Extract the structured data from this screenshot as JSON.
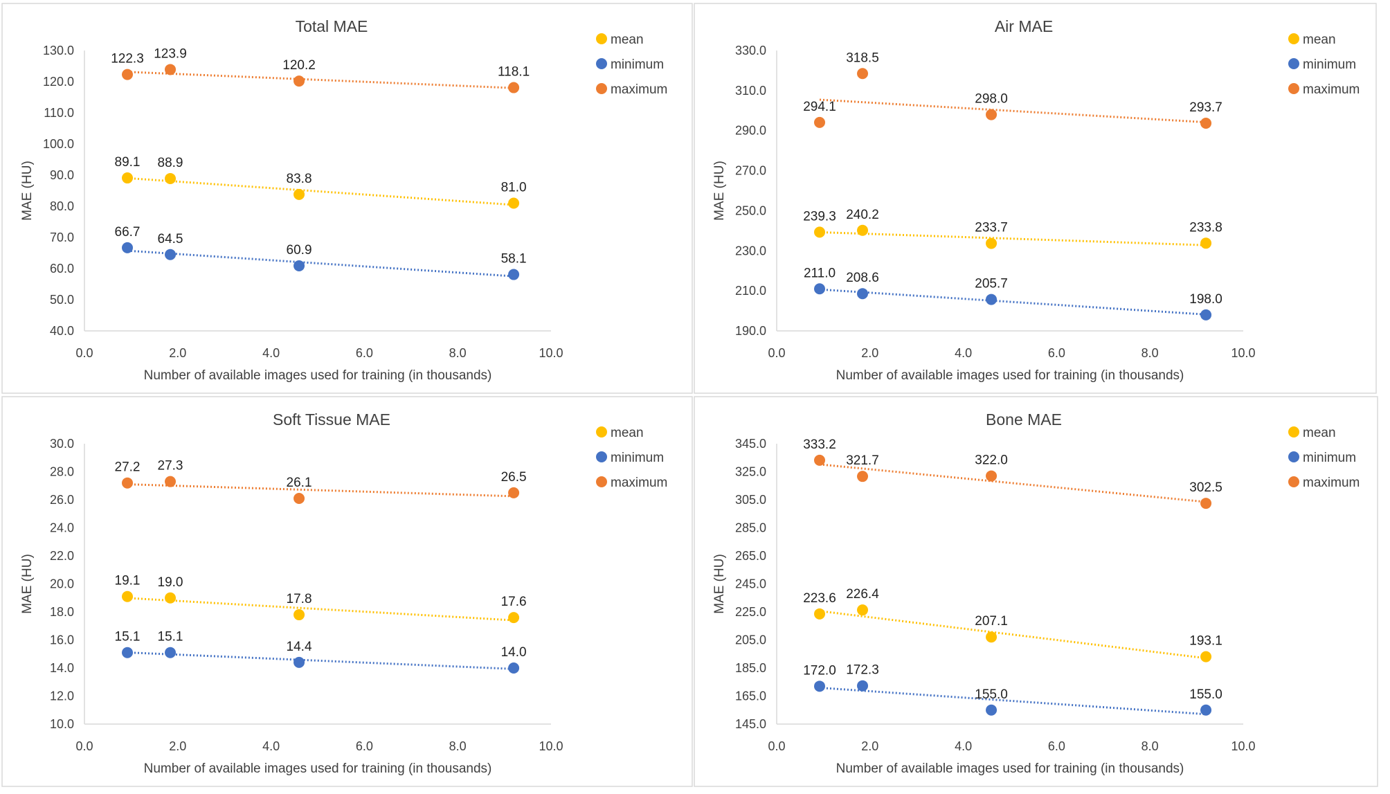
{
  "colors": {
    "mean": "#FFC000",
    "minimum": "#4472C4",
    "maximum": "#ED7D31"
  },
  "chart_data": [
    {
      "type": "scatter",
      "title": "Total MAE",
      "xlabel": "Number of available images used for training (in thousands)",
      "ylabel": "MAE (HU)",
      "xlim": [
        0,
        10
      ],
      "xstep": 2,
      "ylim": [
        40,
        130
      ],
      "ystep": 10,
      "x": [
        0.92,
        1.84,
        4.6,
        9.2
      ],
      "legend_position": "top-right",
      "trendline": "linear",
      "series": [
        {
          "name": "mean",
          "key": "mean",
          "values": [
            89.1,
            88.9,
            83.8,
            81.0
          ]
        },
        {
          "name": "minimum",
          "key": "minimum",
          "values": [
            66.7,
            64.5,
            60.9,
            58.1
          ]
        },
        {
          "name": "maximum",
          "key": "maximum",
          "values": [
            122.3,
            123.9,
            120.2,
            118.1
          ]
        }
      ]
    },
    {
      "type": "scatter",
      "title": "Air MAE",
      "xlabel": "Number of available images used for training (in thousands)",
      "ylabel": "MAE (HU)",
      "xlim": [
        0,
        10
      ],
      "xstep": 2,
      "ylim": [
        190,
        330
      ],
      "ystep": 20,
      "x": [
        0.92,
        1.84,
        4.6,
        9.2
      ],
      "legend_position": "top-right",
      "trendline": "linear",
      "series": [
        {
          "name": "mean",
          "key": "mean",
          "values": [
            239.3,
            240.2,
            233.7,
            233.8
          ]
        },
        {
          "name": "minimum",
          "key": "minimum",
          "values": [
            211.0,
            208.6,
            205.7,
            198.0
          ]
        },
        {
          "name": "maximum",
          "key": "maximum",
          "values": [
            294.1,
            318.5,
            298.0,
            293.7
          ]
        }
      ]
    },
    {
      "type": "scatter",
      "title": "Soft Tissue MAE",
      "xlabel": "Number of available images used for training (in thousands)",
      "ylabel": "MAE (HU)",
      "xlim": [
        0,
        10
      ],
      "xstep": 2,
      "ylim": [
        10,
        30
      ],
      "ystep": 2,
      "x": [
        0.92,
        1.84,
        4.6,
        9.2
      ],
      "legend_position": "top-right",
      "trendline": "linear",
      "series": [
        {
          "name": "mean",
          "key": "mean",
          "values": [
            19.1,
            19.0,
            17.8,
            17.6
          ]
        },
        {
          "name": "minimum",
          "key": "minimum",
          "values": [
            15.1,
            15.1,
            14.4,
            14.0
          ]
        },
        {
          "name": "maximum",
          "key": "maximum",
          "values": [
            27.2,
            27.3,
            26.1,
            26.5
          ]
        }
      ]
    },
    {
      "type": "scatter",
      "title": "Bone MAE",
      "xlabel": "Number of available images used for training (in thousands)",
      "ylabel": "MAE (HU)",
      "xlim": [
        0,
        10
      ],
      "xstep": 2,
      "ylim": [
        145,
        345
      ],
      "ystep": 20,
      "x": [
        0.92,
        1.84,
        4.6,
        9.2
      ],
      "legend_position": "top-right",
      "trendline": "linear",
      "series": [
        {
          "name": "mean",
          "key": "mean",
          "values": [
            223.6,
            226.4,
            207.1,
            193.1
          ]
        },
        {
          "name": "minimum",
          "key": "minimum",
          "values": [
            172.0,
            172.3,
            155.0,
            155.0
          ]
        },
        {
          "name": "maximum",
          "key": "maximum",
          "values": [
            333.2,
            321.7,
            322.0,
            302.5
          ]
        }
      ]
    }
  ]
}
